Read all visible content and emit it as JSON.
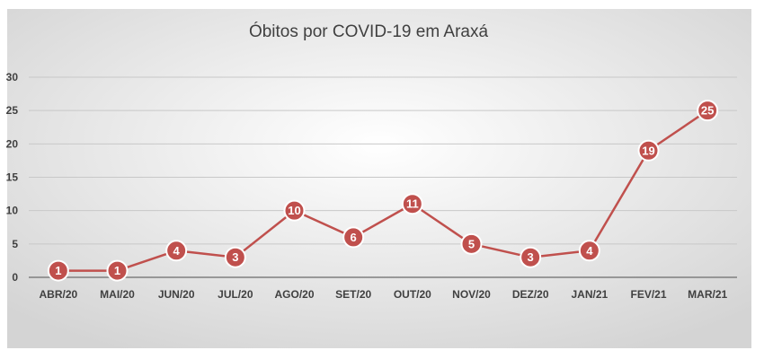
{
  "chart_data": {
    "type": "line",
    "title": "Óbitos por COVID-19 em Araxá",
    "categories": [
      "ABR/20",
      "MAI/20",
      "JUN/20",
      "JUL/20",
      "AGO/20",
      "SET/20",
      "OUT/20",
      "NOV/20",
      "DEZ/20",
      "JAN/21",
      "FEV/21",
      "MAR/21"
    ],
    "series": [
      {
        "values": [
          1,
          1,
          4,
          3,
          10,
          6,
          11,
          5,
          3,
          4,
          19,
          25
        ]
      }
    ],
    "ylim": [
      0,
      30
    ],
    "yticks": [
      0,
      5,
      10,
      15,
      20,
      25,
      30
    ],
    "grid": true,
    "data_labels": true,
    "colors": {
      "series": "#c0504d",
      "marker_fill": "#c0504d",
      "marker_stroke": "#ffffff",
      "grid": "#c8c8c8",
      "axis": "#7f7f7f",
      "background_center": "#ffffff",
      "background_edge": "#d4d4d4"
    }
  }
}
